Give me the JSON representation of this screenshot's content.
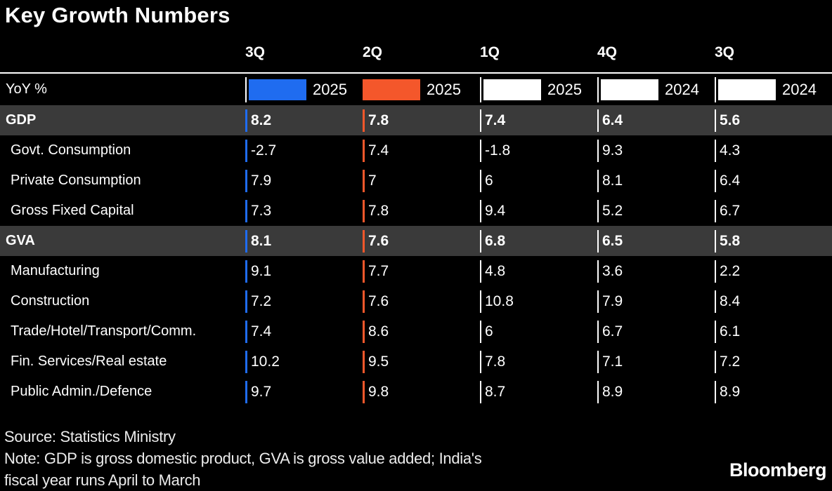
{
  "title": "Key Growth Numbers",
  "unit_label": "YoY %",
  "colors": {
    "background": "#000000",
    "text": "#ffffff",
    "highlight_row": "#3a3a3a",
    "accent_blue": "#1f6cf0",
    "accent_orange": "#f4572b",
    "neutral_white": "#ffffff"
  },
  "columns": [
    {
      "quarter": "3Q",
      "year": "2025",
      "color": "#1f6cf0",
      "legend_tick": true
    },
    {
      "quarter": "2Q",
      "year": "2025",
      "color": "#f4572b",
      "legend_tick": false
    },
    {
      "quarter": "1Q",
      "year": "2025",
      "color": "#ffffff",
      "legend_tick": true
    },
    {
      "quarter": "4Q",
      "year": "2024",
      "color": "#ffffff",
      "legend_tick": true
    },
    {
      "quarter": "3Q",
      "year": "2024",
      "color": "#ffffff",
      "legend_tick": true
    }
  ],
  "rows": [
    {
      "label": "GDP",
      "group": true,
      "values": [
        "8.2",
        "7.8",
        "7.4",
        "6.4",
        "5.6"
      ]
    },
    {
      "label": "Govt. Consumption",
      "group": false,
      "values": [
        "-2.7",
        "7.4",
        "-1.8",
        "9.3",
        "4.3"
      ]
    },
    {
      "label": "Private Consumption",
      "group": false,
      "values": [
        "7.9",
        "7",
        "6",
        "8.1",
        "6.4"
      ]
    },
    {
      "label": "Gross Fixed Capital",
      "group": false,
      "values": [
        "7.3",
        "7.8",
        "9.4",
        "5.2",
        "6.7"
      ]
    },
    {
      "label": "GVA",
      "group": true,
      "values": [
        "8.1",
        "7.6",
        "6.8",
        "6.5",
        "5.8"
      ]
    },
    {
      "label": "Manufacturing",
      "group": false,
      "values": [
        "9.1",
        "7.7",
        "4.8",
        "3.6",
        "2.2"
      ]
    },
    {
      "label": "Construction",
      "group": false,
      "values": [
        "7.2",
        "7.6",
        "10.8",
        "7.9",
        "8.4"
      ]
    },
    {
      "label": "Trade/Hotel/Transport/Comm.",
      "group": false,
      "values": [
        "7.4",
        "8.6",
        "6",
        "6.7",
        "6.1"
      ]
    },
    {
      "label": "Fin. Services/Real estate",
      "group": false,
      "values": [
        "10.2",
        "9.5",
        "7.8",
        "7.1",
        "7.2"
      ]
    },
    {
      "label": "Public Admin./Defence",
      "group": false,
      "values": [
        "9.7",
        "9.8",
        "8.7",
        "8.9",
        "8.9"
      ]
    }
  ],
  "footer": {
    "source": "Source: Statistics Ministry",
    "note_line1": "Note: GDP is gross domestic product, GVA is gross value added; India's",
    "note_line2": "fiscal year runs April to March",
    "brand": "Bloomberg"
  },
  "chart_data": {
    "type": "table",
    "title": "Key Growth Numbers",
    "unit": "YoY %",
    "columns": [
      "3Q 2025",
      "2Q 2025",
      "1Q 2025",
      "4Q 2024",
      "3Q 2024"
    ],
    "column_highlight_colors": [
      "#1f6cf0",
      "#f4572b",
      "#ffffff",
      "#ffffff",
      "#ffffff"
    ],
    "rows": [
      {
        "label": "GDP",
        "is_group_header": true,
        "values": [
          8.2,
          7.8,
          7.4,
          6.4,
          5.6
        ]
      },
      {
        "label": "Govt. Consumption",
        "is_group_header": false,
        "values": [
          -2.7,
          7.4,
          -1.8,
          9.3,
          4.3
        ]
      },
      {
        "label": "Private Consumption",
        "is_group_header": false,
        "values": [
          7.9,
          7,
          6,
          8.1,
          6.4
        ]
      },
      {
        "label": "Gross Fixed Capital",
        "is_group_header": false,
        "values": [
          7.3,
          7.8,
          9.4,
          5.2,
          6.7
        ]
      },
      {
        "label": "GVA",
        "is_group_header": true,
        "values": [
          8.1,
          7.6,
          6.8,
          6.5,
          5.8
        ]
      },
      {
        "label": "Manufacturing",
        "is_group_header": false,
        "values": [
          9.1,
          7.7,
          4.8,
          3.6,
          2.2
        ]
      },
      {
        "label": "Construction",
        "is_group_header": false,
        "values": [
          7.2,
          7.6,
          10.8,
          7.9,
          8.4
        ]
      },
      {
        "label": "Trade/Hotel/Transport/Comm.",
        "is_group_header": false,
        "values": [
          7.4,
          8.6,
          6,
          6.7,
          6.1
        ]
      },
      {
        "label": "Fin. Services/Real estate",
        "is_group_header": false,
        "values": [
          10.2,
          9.5,
          7.8,
          7.1,
          7.2
        ]
      },
      {
        "label": "Public Admin./Defence",
        "is_group_header": false,
        "values": [
          9.7,
          9.8,
          8.7,
          8.9,
          8.9
        ]
      }
    ],
    "source": "Statistics Ministry",
    "note": "GDP is gross domestic product, GVA is gross value added; India's fiscal year runs April to March",
    "legend_position": "top",
    "grid": false
  }
}
